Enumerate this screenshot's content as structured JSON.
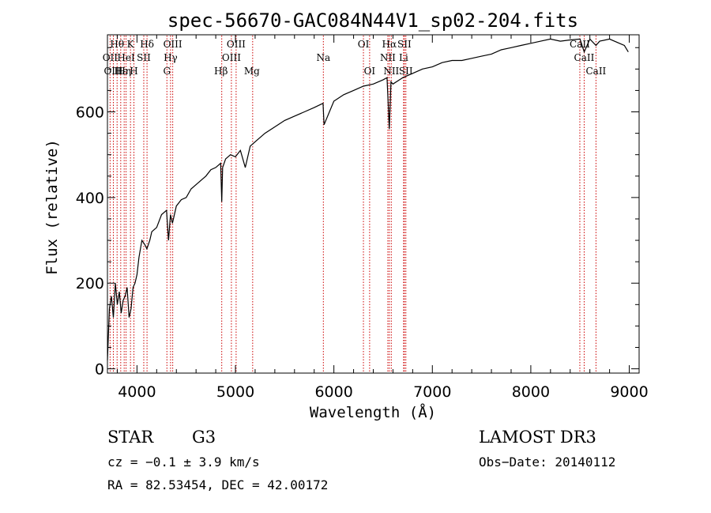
{
  "chart_data": {
    "type": "line",
    "title": "spec-56670-GAC084N44V1_sp02-204.fits",
    "xlabel": "Wavelength (Å)",
    "ylabel": "Flux (relative)",
    "xlim": [
      3700,
      9100
    ],
    "ylim": [
      -10,
      780
    ],
    "x_ticks": [
      4000,
      5000,
      6000,
      7000,
      8000,
      9000
    ],
    "y_ticks": [
      0,
      200,
      400,
      600
    ],
    "grid": false,
    "series": [
      {
        "name": "spectrum",
        "x": [
          3700,
          3720,
          3740,
          3760,
          3780,
          3800,
          3820,
          3840,
          3860,
          3880,
          3900,
          3920,
          3940,
          3960,
          3980,
          4000,
          4020,
          4050,
          4080,
          4100,
          4130,
          4150,
          4200,
          4250,
          4300,
          4320,
          4340,
          4360,
          4400,
          4450,
          4500,
          4550,
          4600,
          4650,
          4700,
          4750,
          4800,
          4850,
          4861,
          4870,
          4900,
          4950,
          5000,
          5050,
          5100,
          5150,
          5200,
          5300,
          5400,
          5500,
          5600,
          5700,
          5800,
          5890,
          5900,
          6000,
          6100,
          6200,
          6300,
          6400,
          6500,
          6540,
          6563,
          6580,
          6600,
          6700,
          6800,
          6900,
          7000,
          7100,
          7200,
          7300,
          7400,
          7500,
          7600,
          7700,
          7800,
          7900,
          8000,
          8100,
          8200,
          8300,
          8400,
          8500,
          8542,
          8600,
          8662,
          8700,
          8800,
          8900,
          8950,
          8990
        ],
        "values": [
          20,
          140,
          170,
          120,
          200,
          150,
          180,
          130,
          160,
          170,
          190,
          120,
          140,
          190,
          200,
          220,
          260,
          300,
          290,
          280,
          300,
          320,
          330,
          360,
          370,
          300,
          360,
          340,
          380,
          395,
          400,
          420,
          430,
          440,
          450,
          465,
          470,
          480,
          390,
          470,
          490,
          500,
          495,
          510,
          470,
          520,
          530,
          550,
          565,
          580,
          590,
          600,
          610,
          620,
          570,
          625,
          640,
          650,
          660,
          665,
          675,
          680,
          560,
          670,
          665,
          680,
          690,
          700,
          705,
          715,
          720,
          720,
          725,
          730,
          735,
          745,
          750,
          755,
          760,
          765,
          770,
          765,
          768,
          770,
          740,
          770,
          755,
          765,
          770,
          760,
          755,
          740
        ]
      }
    ],
    "line_markers": [
      {
        "label": "Hθ",
        "x": 3798,
        "row": 0
      },
      {
        "label": "OII",
        "x": 3727,
        "row": 1
      },
      {
        "label": "OIII",
        "x": 3760,
        "row": 2
      },
      {
        "label": "Hε",
        "x": 3835,
        "row": 2
      },
      {
        "label": "HeI",
        "x": 3889,
        "row": 1
      },
      {
        "label": "Hη",
        "x": 3870,
        "row": 2
      },
      {
        "label": "K",
        "x": 3934,
        "row": 0
      },
      {
        "label": "SII",
        "x": 4069,
        "row": 1
      },
      {
        "label": "H",
        "x": 3969,
        "row": 2
      },
      {
        "label": "Hδ",
        "x": 4102,
        "row": 0
      },
      {
        "label": "OIII",
        "x": 4363,
        "row": 0
      },
      {
        "label": "Hγ",
        "x": 4341,
        "row": 1
      },
      {
        "label": "G",
        "x": 4304,
        "row": 2
      },
      {
        "label": "Hβ",
        "x": 4861,
        "row": 3
      },
      {
        "label": "OIII",
        "x": 5007,
        "row": 0
      },
      {
        "label": "OIII",
        "x": 4959,
        "row": 1
      },
      {
        "label": "Mg",
        "x": 5175,
        "row": 3
      },
      {
        "label": "Na",
        "x": 5893,
        "row": 1
      },
      {
        "label": "OI",
        "x": 6300,
        "row": 0
      },
      {
        "label": "OI",
        "x": 6363,
        "row": 2
      },
      {
        "label": "Hα",
        "x": 6563,
        "row": 0
      },
      {
        "label": "SII",
        "x": 6716,
        "row": 0
      },
      {
        "label": "NII",
        "x": 6548,
        "row": 1
      },
      {
        "label": "Li",
        "x": 6708,
        "row": 1
      },
      {
        "label": "NII",
        "x": 6583,
        "row": 2
      },
      {
        "label": "SII",
        "x": 6731,
        "row": 2
      },
      {
        "label": "CaII",
        "x": 8498,
        "row": 0
      },
      {
        "label": "CaII",
        "x": 8542,
        "row": 1
      },
      {
        "label": "CaII",
        "x": 8662,
        "row": 2
      }
    ]
  },
  "info": {
    "object_class": "STAR",
    "subclass": "G3",
    "cz": "cz = −0.1 ± 3.9 km/s",
    "coords": "RA =  82.53454, DEC =  42.00172",
    "survey": "LAMOST DR3",
    "obs_date": "Obs−Date: 20140112"
  },
  "colors": {
    "marker": "#cc0000",
    "spectrum": "#000000"
  }
}
